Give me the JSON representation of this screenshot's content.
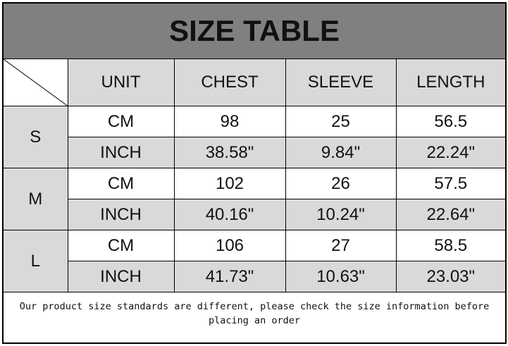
{
  "title": "SIZE TABLE",
  "headers": [
    "UNIT",
    "CHEST",
    "SLEEVE",
    "LENGTH"
  ],
  "rows": [
    {
      "size": "S",
      "cm": {
        "unit": "CM",
        "chest": "98",
        "sleeve": "25",
        "length": "56.5"
      },
      "inch": {
        "unit": "INCH",
        "chest": "38.58\"",
        "sleeve": "9.84\"",
        "length": "22.24\""
      }
    },
    {
      "size": "M",
      "cm": {
        "unit": "CM",
        "chest": "102",
        "sleeve": "26",
        "length": "57.5"
      },
      "inch": {
        "unit": "INCH",
        "chest": "40.16\"",
        "sleeve": "10.24\"",
        "length": "22.64\""
      }
    },
    {
      "size": "L",
      "cm": {
        "unit": "CM",
        "chest": "106",
        "sleeve": "27",
        "length": "58.5"
      },
      "inch": {
        "unit": "INCH",
        "chest": "41.73\"",
        "sleeve": "10.63\"",
        "length": "23.03\""
      }
    }
  ],
  "note": "Our product size standards are different, please check the size information before placing an order",
  "colors": {
    "title_bg": "#808080",
    "header_bg": "#d9d9d9",
    "border": "#000000"
  }
}
